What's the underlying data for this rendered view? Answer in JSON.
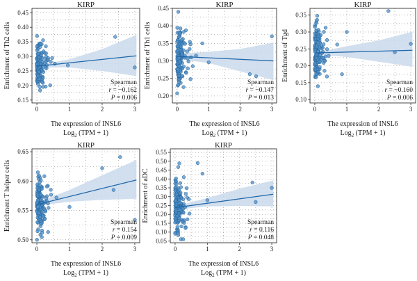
{
  "chart_data": [
    {
      "type": "scatter",
      "title": "KIRP",
      "ylabel": "Enrichment of Th2 cells",
      "xlabel_line1": "The expression of INSL6",
      "xlabel_line2_main": "Log",
      "xlabel_line2_sub": "2",
      "xlabel_line2_rest": " (TPM + 1)",
      "xlim": [
        -0.15,
        3.15
      ],
      "ylim": [
        0.14,
        0.465
      ],
      "xticks": [
        0,
        1,
        2,
        3
      ],
      "yticks": [
        0.15,
        0.2,
        0.25,
        0.3,
        0.35,
        0.4,
        0.45
      ],
      "ytick_labels": [
        "0.15",
        "0.20",
        "0.25",
        "0.30",
        "0.35",
        "0.40",
        "0.45"
      ],
      "stat_method": "Spearman",
      "stat_r_label": "r",
      "stat_r": "−0.162",
      "stat_p_label": "P",
      "stat_p": "0.006",
      "fit_line": {
        "x": [
          0,
          3.05
        ],
        "y": [
          0.266,
          0.302
        ]
      },
      "ci_band": {
        "x": [
          0,
          0.3,
          1.0,
          2.0,
          3.05
        ],
        "lower": [
          0.252,
          0.262,
          0.262,
          0.25,
          0.232
        ],
        "upper": [
          0.282,
          0.276,
          0.29,
          0.325,
          0.374
        ]
      },
      "outliers": [
        [
          0.95,
          0.269
        ],
        [
          2.4,
          0.367
        ],
        [
          3.0,
          0.262
        ],
        [
          0.55,
          0.275
        ]
      ],
      "cluster": {
        "n": 160,
        "y_center": 0.267,
        "y_spread": 0.042,
        "y_min": 0.15,
        "y_max": 0.46
      }
    },
    {
      "type": "scatter",
      "title": "KIRP",
      "ylabel": "Enrichment of Th1 cells",
      "xlabel_line1": "The expression of INSL6",
      "xlabel_line2_main": "Log",
      "xlabel_line2_sub": "2",
      "xlabel_line2_rest": " (TPM + 1)",
      "xlim": [
        -0.15,
        3.15
      ],
      "ylim": [
        0.18,
        0.45
      ],
      "xticks": [
        0,
        1,
        2,
        3
      ],
      "yticks": [
        0.2,
        0.25,
        0.3,
        0.35,
        0.4,
        0.45
      ],
      "ytick_labels": [
        "0.20",
        "0.25",
        "0.30",
        "0.35",
        "0.40",
        "0.45"
      ],
      "stat_method": "Spearman",
      "stat_r_label": "r",
      "stat_r": "−0.147",
      "stat_p_label": "P",
      "stat_p": "0.013",
      "fit_line": {
        "x": [
          0,
          3.05
        ],
        "y": [
          0.313,
          0.3
        ]
      },
      "ci_band": {
        "x": [
          0,
          0.3,
          1.0,
          2.0,
          3.05
        ],
        "lower": [
          0.305,
          0.302,
          0.294,
          0.27,
          0.245
        ],
        "upper": [
          0.32,
          0.322,
          0.326,
          0.334,
          0.352
        ]
      },
      "outliers": [
        [
          0.8,
          0.35
        ],
        [
          1.0,
          0.296
        ],
        [
          2.3,
          0.262
        ],
        [
          2.5,
          0.256
        ],
        [
          3.0,
          0.37
        ],
        [
          0.6,
          0.315
        ]
      ],
      "cluster": {
        "n": 160,
        "y_center": 0.311,
        "y_spread": 0.04,
        "y_min": 0.19,
        "y_max": 0.44
      }
    },
    {
      "type": "scatter",
      "title": "KIRP",
      "ylabel": "Enrichment of Tgd",
      "xlabel_line1": "The expression of INSL6",
      "xlabel_line2_main": "Log",
      "xlabel_line2_sub": "2",
      "xlabel_line2_rest": " (TPM + 1)",
      "xlim": [
        -0.15,
        3.15
      ],
      "ylim": [
        0.09,
        0.37
      ],
      "xticks": [
        0,
        1,
        2,
        3
      ],
      "yticks": [
        0.1,
        0.15,
        0.2,
        0.25,
        0.3,
        0.35
      ],
      "ytick_labels": [
        "0.10",
        "0.15",
        "0.20",
        "0.25",
        "0.30",
        "0.35"
      ],
      "stat_method": "Spearman",
      "stat_r_label": "r",
      "stat_r": "−0.160",
      "stat_p_label": "P",
      "stat_p": "0.006",
      "fit_line": {
        "x": [
          0,
          3.05
        ],
        "y": [
          0.238,
          0.246
        ]
      },
      "ci_band": {
        "x": [
          0,
          0.3,
          1.0,
          2.0,
          3.05
        ],
        "lower": [
          0.228,
          0.232,
          0.226,
          0.212,
          0.197
        ],
        "upper": [
          0.246,
          0.244,
          0.258,
          0.275,
          0.301
        ]
      },
      "outliers": [
        [
          0.7,
          0.263
        ],
        [
          0.85,
          0.175
        ],
        [
          1.0,
          0.3
        ],
        [
          2.3,
          0.362
        ],
        [
          2.5,
          0.24
        ],
        [
          3.0,
          0.265
        ]
      ],
      "cluster": {
        "n": 160,
        "y_center": 0.238,
        "y_spread": 0.042,
        "y_min": 0.1,
        "y_max": 0.36
      }
    },
    {
      "type": "scatter",
      "title": "KIRP",
      "ylabel": "Enrichment T helper cells",
      "xlabel_line1": "The expression of INSL6",
      "xlabel_line2_main": "Log",
      "xlabel_line2_sub": "2",
      "xlabel_line2_rest": " (TPM + 1)",
      "xlim": [
        -0.15,
        3.15
      ],
      "ylim": [
        0.495,
        0.655
      ],
      "xticks": [
        0,
        1,
        2,
        3
      ],
      "yticks": [
        0.5,
        0.55,
        0.6,
        0.65
      ],
      "ytick_labels": [
        "0.50",
        "0.55",
        "0.60",
        "0.65"
      ],
      "stat_method": "Spearman",
      "stat_r_label": "r",
      "stat_r": "0.154",
      "stat_p_label": "P",
      "stat_p": "0.009",
      "fit_line": {
        "x": [
          0,
          3.05
        ],
        "y": [
          0.56,
          0.602
        ]
      },
      "ci_band": {
        "x": [
          0,
          0.3,
          1.0,
          2.0,
          3.05
        ],
        "lower": [
          0.555,
          0.56,
          0.565,
          0.568,
          0.57
        ],
        "upper": [
          0.566,
          0.57,
          0.585,
          0.61,
          0.636
        ]
      },
      "outliers": [
        [
          1.0,
          0.556
        ],
        [
          2.0,
          0.622
        ],
        [
          2.35,
          0.585
        ],
        [
          2.55,
          0.641
        ],
        [
          3.0,
          0.534
        ],
        [
          0.6,
          0.572
        ]
      ],
      "cluster": {
        "n": 160,
        "y_center": 0.561,
        "y_spread": 0.022,
        "y_min": 0.5,
        "y_max": 0.645
      }
    },
    {
      "type": "scatter",
      "title": "KIRP",
      "ylabel": "Enrichment of aDC",
      "xlabel_line1": "The expression of INSL6",
      "xlabel_line2_main": "Log",
      "xlabel_line2_sub": "2",
      "xlabel_line2_rest": " (TPM + 1)",
      "xlim": [
        -0.15,
        3.15
      ],
      "ylim": [
        0.04,
        0.57
      ],
      "xticks": [
        0,
        1,
        2,
        3
      ],
      "yticks": [
        0.05,
        0.1,
        0.15,
        0.2,
        0.25,
        0.3,
        0.35,
        0.4,
        0.45,
        0.5,
        0.55
      ],
      "ytick_labels": [
        "0.05",
        "0.10",
        "0.15",
        "0.20",
        "0.25",
        "0.30",
        "0.35",
        "0.40",
        "0.45",
        "0.50",
        "0.55"
      ],
      "stat_method": "Spearman",
      "stat_r_label": "r",
      "stat_r": "0.116",
      "stat_p_label": "P",
      "stat_p": "0.048",
      "fit_line": {
        "x": [
          0,
          3.05
        ],
        "y": [
          0.238,
          0.314
        ]
      },
      "ci_band": {
        "x": [
          0,
          0.3,
          1.0,
          2.0,
          3.05
        ],
        "lower": [
          0.225,
          0.232,
          0.245,
          0.248,
          0.245
        ],
        "upper": [
          0.252,
          0.26,
          0.292,
          0.345,
          0.392
        ]
      },
      "outliers": [
        [
          0.7,
          0.49
        ],
        [
          0.85,
          0.43
        ],
        [
          1.0,
          0.28
        ],
        [
          2.4,
          0.38
        ],
        [
          2.5,
          0.27
        ],
        [
          3.0,
          0.35
        ]
      ],
      "cluster": {
        "n": 160,
        "y_center": 0.235,
        "y_spread": 0.075,
        "y_min": 0.06,
        "y_max": 0.55
      }
    }
  ],
  "colors": {
    "point_fill": "#4f8fc6",
    "point_stroke": "#1f5f99",
    "fit_line": "#1f66a8",
    "ci_band": "#c9d9ec",
    "grid": "#9a9a9a"
  }
}
